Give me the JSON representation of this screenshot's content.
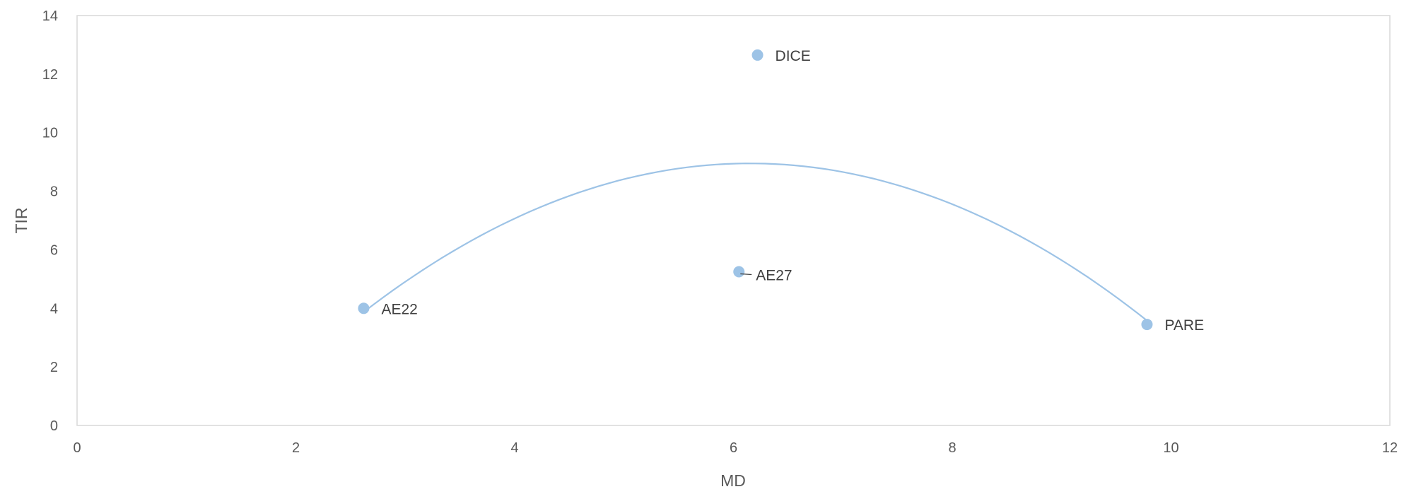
{
  "chart_data": {
    "type": "scatter",
    "xlabel": "MD",
    "ylabel": "TIR",
    "xlim": [
      0,
      12
    ],
    "ylim": [
      0,
      14
    ],
    "xticks": [
      0,
      2,
      4,
      6,
      8,
      10,
      12
    ],
    "yticks": [
      0,
      2,
      4,
      6,
      8,
      10,
      12,
      14
    ],
    "grid": false,
    "points": [
      {
        "label": "AE22",
        "x": 2.62,
        "y": 4.0
      },
      {
        "label": "AE27",
        "x": 6.05,
        "y": 5.25
      },
      {
        "label": "DICE",
        "x": 6.22,
        "y": 12.65
      },
      {
        "label": "PARE",
        "x": 9.78,
        "y": 3.45
      }
    ],
    "trendline": {
      "type": "polynomial",
      "order": 2,
      "x_range": [
        2.62,
        9.78
      ],
      "vertex": {
        "x": 6.15,
        "y": 8.95
      }
    },
    "colors": {
      "marker": "#9dc3e6",
      "trendline": "#9dc3e6",
      "axis_text": "#595959",
      "label_text": "#404040",
      "border": "#d9d9d9"
    }
  }
}
